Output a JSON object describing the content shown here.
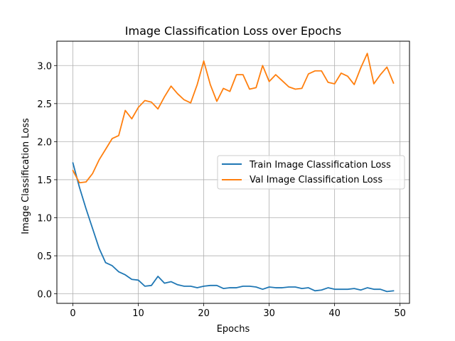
{
  "chart_data": {
    "type": "line",
    "title": "Image Classification Loss over Epochs",
    "xlabel": "Epochs",
    "ylabel": "Image Classification Loss",
    "xlim": [
      -2.45,
      51.45
    ],
    "ylim": [
      -0.125,
      3.32
    ],
    "xticks": [
      0,
      10,
      20,
      30,
      40,
      50
    ],
    "yticks": [
      0.0,
      0.5,
      1.0,
      1.5,
      2.0,
      2.5,
      3.0
    ],
    "ytick_labels": [
      "0.0",
      "0.5",
      "1.0",
      "1.5",
      "2.0",
      "2.5",
      "3.0"
    ],
    "grid": true,
    "legend_position": "center-right",
    "x": [
      0,
      1,
      2,
      3,
      4,
      5,
      6,
      7,
      8,
      9,
      10,
      11,
      12,
      13,
      14,
      15,
      16,
      17,
      18,
      19,
      20,
      21,
      22,
      23,
      24,
      25,
      26,
      27,
      28,
      29,
      30,
      31,
      32,
      33,
      34,
      35,
      36,
      37,
      38,
      39,
      40,
      41,
      42,
      43,
      44,
      45,
      46,
      47,
      48,
      49
    ],
    "series": [
      {
        "name": "Train Image Classification Loss",
        "color": "#1f77b4",
        "values": [
          1.72,
          1.4,
          1.12,
          0.86,
          0.6,
          0.41,
          0.37,
          0.29,
          0.25,
          0.19,
          0.18,
          0.1,
          0.11,
          0.23,
          0.14,
          0.16,
          0.12,
          0.1,
          0.1,
          0.08,
          0.1,
          0.11,
          0.11,
          0.07,
          0.08,
          0.08,
          0.1,
          0.1,
          0.09,
          0.06,
          0.09,
          0.08,
          0.08,
          0.09,
          0.09,
          0.07,
          0.08,
          0.04,
          0.05,
          0.08,
          0.06,
          0.06,
          0.06,
          0.07,
          0.05,
          0.08,
          0.06,
          0.06,
          0.03,
          0.04
        ]
      },
      {
        "name": "Val Image Classification Loss",
        "color": "#ff7f0e",
        "values": [
          1.62,
          1.46,
          1.47,
          1.58,
          1.76,
          1.9,
          2.04,
          2.08,
          2.41,
          2.3,
          2.45,
          2.54,
          2.52,
          2.43,
          2.59,
          2.73,
          2.63,
          2.55,
          2.51,
          2.75,
          3.06,
          2.75,
          2.53,
          2.7,
          2.66,
          2.88,
          2.88,
          2.69,
          2.71,
          3.0,
          2.79,
          2.88,
          2.8,
          2.72,
          2.69,
          2.7,
          2.89,
          2.93,
          2.93,
          2.78,
          2.76,
          2.9,
          2.86,
          2.75,
          2.97,
          3.16,
          2.76,
          2.88,
          2.98,
          2.77
        ]
      }
    ]
  }
}
